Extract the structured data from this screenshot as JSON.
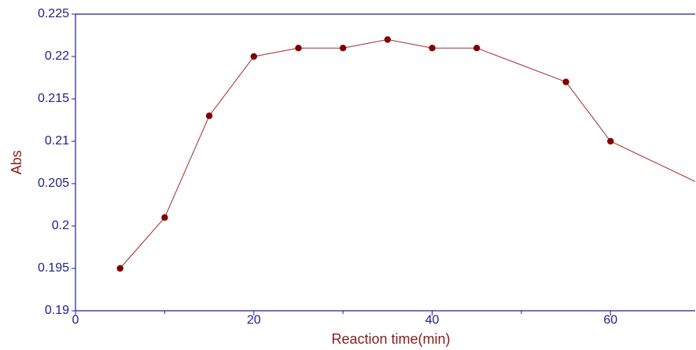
{
  "chart_data": {
    "type": "line",
    "title": "",
    "xlabel": "Reaction time(min)",
    "ylabel": "Abs",
    "xlim": [
      0,
      69.5
    ],
    "ylim": [
      0.19,
      0.225
    ],
    "x_ticks": [
      0,
      20,
      40,
      60
    ],
    "x_tick_labels": [
      "0",
      "20",
      "40",
      "60"
    ],
    "x_minor_ticks": [
      10,
      30,
      50
    ],
    "y_ticks": [
      0.19,
      0.195,
      0.2,
      0.205,
      0.21,
      0.215,
      0.22,
      0.225
    ],
    "y_tick_labels": [
      "0.19",
      "0.195",
      "0.2",
      "0.205",
      "0.21",
      "0.215",
      "0.22",
      "0.225"
    ],
    "grid": false,
    "legend": "none",
    "series": [
      {
        "x": [
          5,
          10,
          15,
          20,
          25,
          30,
          35,
          40,
          45,
          55,
          60,
          70
        ],
        "y": [
          0.195,
          0.201,
          0.213,
          0.22,
          0.221,
          0.221,
          0.222,
          0.221,
          0.221,
          0.217,
          0.21,
          0.205
        ],
        "line_color": "#a52a2a",
        "marker_color": "#7f0000"
      }
    ],
    "colors": {
      "axis": "#20208f",
      "tick_text": "#20208f",
      "title_text": "#8b1a1a"
    }
  }
}
